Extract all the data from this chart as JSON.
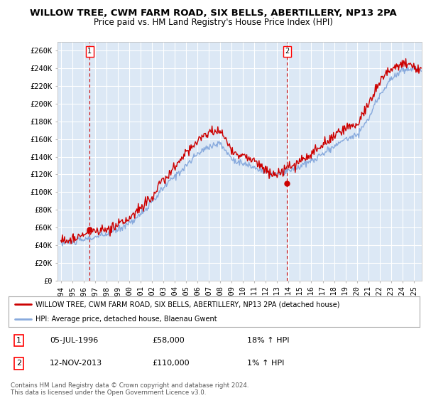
{
  "title": "WILLOW TREE, CWM FARM ROAD, SIX BELLS, ABERTILLERY, NP13 2PA",
  "subtitle": "Price paid vs. HM Land Registry's House Price Index (HPI)",
  "ylabel_ticks": [
    "£0",
    "£20K",
    "£40K",
    "£60K",
    "£80K",
    "£100K",
    "£120K",
    "£140K",
    "£160K",
    "£180K",
    "£200K",
    "£220K",
    "£240K",
    "£260K"
  ],
  "ytick_values": [
    0,
    20000,
    40000,
    60000,
    80000,
    100000,
    120000,
    140000,
    160000,
    180000,
    200000,
    220000,
    240000,
    260000
  ],
  "ylim": [
    0,
    270000
  ],
  "xlim_start": 1993.7,
  "xlim_end": 2025.7,
  "xticks": [
    1994,
    1995,
    1996,
    1997,
    1998,
    1999,
    2000,
    2001,
    2002,
    2003,
    2004,
    2005,
    2006,
    2007,
    2008,
    2009,
    2010,
    2011,
    2012,
    2013,
    2014,
    2015,
    2016,
    2017,
    2018,
    2019,
    2020,
    2021,
    2022,
    2023,
    2024,
    2025
  ],
  "sale1_x": 1996.51,
  "sale1_y": 58000,
  "sale1_label": "1",
  "sale2_x": 2013.86,
  "sale2_y": 110000,
  "sale2_label": "2",
  "sale_color": "#cc0000",
  "hpi_color": "#88aadd",
  "plot_bg_color": "#dce8f5",
  "sale_dot_color": "#cc0000",
  "vline_color": "#cc0000",
  "legend_sale_label": "WILLOW TREE, CWM FARM ROAD, SIX BELLS, ABERTILLERY, NP13 2PA (detached house)",
  "legend_hpi_label": "HPI: Average price, detached house, Blaenau Gwent",
  "table_rows": [
    {
      "num": "1",
      "date": "05-JUL-1996",
      "price": "£58,000",
      "hpi": "18% ↑ HPI"
    },
    {
      "num": "2",
      "date": "12-NOV-2013",
      "price": "£110,000",
      "hpi": "1% ↑ HPI"
    }
  ],
  "footnote": "Contains HM Land Registry data © Crown copyright and database right 2024.\nThis data is licensed under the Open Government Licence v3.0.",
  "bg_color": "#ffffff",
  "grid_color": "#ffffff",
  "title_fontsize": 9.5,
  "subtitle_fontsize": 8.5,
  "axis_fontsize": 7.5
}
